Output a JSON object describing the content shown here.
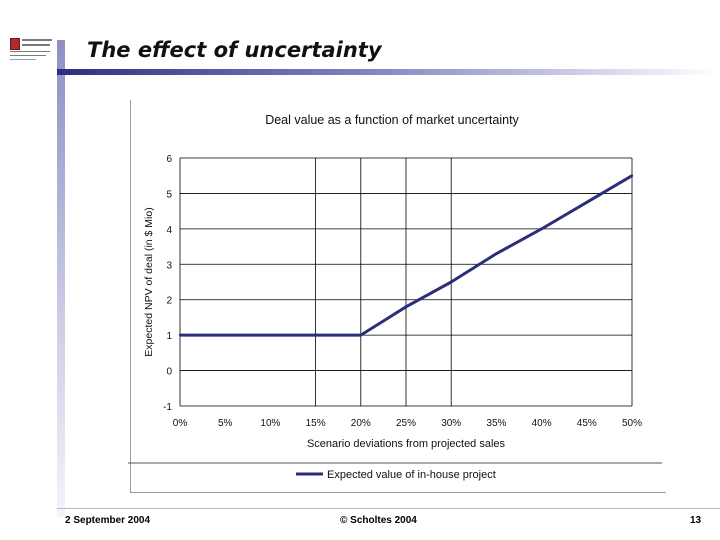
{
  "slide": {
    "title": "The effect of uncertainty",
    "footer_date": "2 September 2004",
    "footer_copyright": "© Scholtes 2004",
    "page_number": "13"
  },
  "colors": {
    "series": "#2b2f7a",
    "grid": "#000000",
    "accent": "#5a5aa8"
  },
  "chart_data": {
    "type": "line",
    "title": "Deal value as a function of market uncertainty",
    "xlabel": "Scenario deviations from projected sales",
    "ylabel": "Expected NPV of deal (in $ Mio)",
    "x": [
      0,
      5,
      10,
      15,
      20,
      25,
      30,
      35,
      40,
      45,
      50
    ],
    "x_tick_labels": [
      "0%",
      "5%",
      "10%",
      "15%",
      "20%",
      "25%",
      "30%",
      "35%",
      "40%",
      "45%",
      "50%"
    ],
    "y_ticks": [
      -1,
      0,
      1,
      2,
      3,
      4,
      5,
      6
    ],
    "xlim": [
      0,
      50
    ],
    "ylim": [
      -1,
      6
    ],
    "grid": true,
    "legend_position": "bottom-center",
    "series": [
      {
        "name": "Expected value of in-house project",
        "values": [
          1.0,
          1.0,
          1.0,
          1.0,
          1.0,
          1.8,
          2.5,
          3.3,
          4.0,
          4.75,
          5.5
        ]
      }
    ]
  }
}
